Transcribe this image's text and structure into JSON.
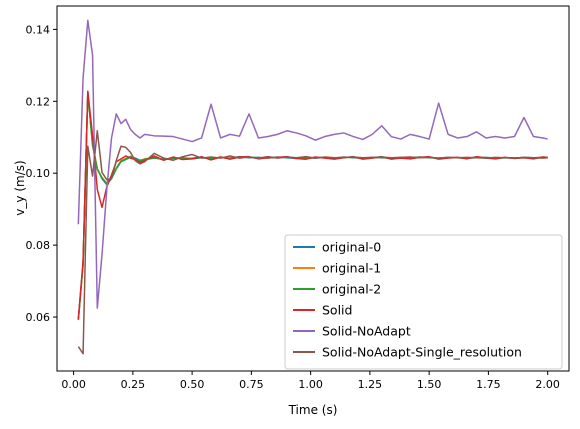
{
  "chart_data": {
    "type": "line",
    "xlabel": "Time (s)",
    "ylabel": "v_y (m/s)",
    "xlim": [
      -0.07,
      2.09
    ],
    "ylim": [
      0.045,
      0.1465
    ],
    "xticks": [
      0.0,
      0.25,
      0.5,
      0.75,
      1.0,
      1.25,
      1.5,
      1.75,
      2.0
    ],
    "xtick_labels": [
      "0.00",
      "0.25",
      "0.50",
      "0.75",
      "1.00",
      "1.25",
      "1.50",
      "1.75",
      "2.00"
    ],
    "yticks": [
      0.06,
      0.08,
      0.1,
      0.12,
      0.14
    ],
    "ytick_labels": [
      "0.06",
      "0.08",
      "0.10",
      "0.12",
      "0.14"
    ],
    "grid": false,
    "legend_position": "lower-right",
    "x": [
      0.02,
      0.04,
      0.06,
      0.08,
      0.1,
      0.12,
      0.14,
      0.16,
      0.18,
      0.2,
      0.22,
      0.24,
      0.26,
      0.28,
      0.3,
      0.34,
      0.38,
      0.42,
      0.46,
      0.5,
      0.54,
      0.58,
      0.62,
      0.66,
      0.7,
      0.74,
      0.78,
      0.82,
      0.86,
      0.9,
      0.94,
      0.98,
      1.02,
      1.06,
      1.1,
      1.14,
      1.18,
      1.22,
      1.26,
      1.3,
      1.34,
      1.38,
      1.42,
      1.46,
      1.5,
      1.54,
      1.58,
      1.62,
      1.66,
      1.7,
      1.74,
      1.78,
      1.82,
      1.86,
      1.9,
      1.94,
      1.98,
      2.0
    ],
    "series": [
      {
        "name": "original-0",
        "color": "#1f77b4",
        "values": [
          0.0592,
          0.0748,
          0.1225,
          0.1078,
          0.1012,
          0.0985,
          0.0968,
          0.0985,
          0.1012,
          0.1032,
          0.1038,
          0.1045,
          0.1042,
          0.1036,
          0.1038,
          0.1042,
          0.1039,
          0.1041,
          0.1043,
          0.104,
          0.1043,
          0.1041,
          0.1044,
          0.1042,
          0.1046,
          0.1043,
          0.1044,
          0.1042,
          0.1045,
          0.1043,
          0.1041,
          0.1043,
          0.1042,
          0.1044,
          0.1042,
          0.1045,
          0.1043,
          0.1042,
          0.1044,
          0.1043,
          0.1042,
          0.1044,
          0.1043,
          0.1045,
          0.1043,
          0.1042,
          0.1044,
          0.1043,
          0.1042,
          0.1043,
          0.1044,
          0.1042,
          0.1043,
          0.1042,
          0.1044,
          0.1043,
          0.1044,
          0.1043
        ]
      },
      {
        "name": "original-1",
        "color": "#ff7f0e",
        "values": [
          0.0592,
          0.0746,
          0.1223,
          0.1082,
          0.1012,
          0.0988,
          0.0972,
          0.0988,
          0.1014,
          0.1035,
          0.1041,
          0.1047,
          0.1039,
          0.1033,
          0.104,
          0.1044,
          0.1037,
          0.1043,
          0.1041,
          0.1042,
          0.1045,
          0.1039,
          0.1045,
          0.104,
          0.1044,
          0.1045,
          0.1042,
          0.1044,
          0.1043,
          0.1045,
          0.1042,
          0.1041,
          0.1044,
          0.1043,
          0.104,
          0.1043,
          0.1045,
          0.1041,
          0.1043,
          0.1045,
          0.1041,
          0.1043,
          0.1042,
          0.1044,
          0.1045,
          0.1041,
          0.1043,
          0.1044,
          0.1041,
          0.1045,
          0.1043,
          0.1041,
          0.1044,
          0.1042,
          0.1043,
          0.1042,
          0.1045,
          0.1044
        ]
      },
      {
        "name": "original-2",
        "color": "#2ca02c",
        "values": [
          0.0592,
          0.0747,
          0.1224,
          0.108,
          0.1011,
          0.0987,
          0.097,
          0.0986,
          0.1013,
          0.1033,
          0.1039,
          0.1046,
          0.104,
          0.1034,
          0.1039,
          0.1043,
          0.1038,
          0.1042,
          0.1042,
          0.1041,
          0.1044,
          0.104,
          0.1044,
          0.1041,
          0.1045,
          0.1044,
          0.1043,
          0.1043,
          0.1044,
          0.1044,
          0.1042,
          0.1042,
          0.1043,
          0.1044,
          0.1041,
          0.1044,
          0.1044,
          0.1042,
          0.1043,
          0.1044,
          0.1042,
          0.1043,
          0.1043,
          0.1044,
          0.1044,
          0.1042,
          0.1043,
          0.1043,
          0.1042,
          0.1044,
          0.1043,
          0.1042,
          0.1043,
          0.1043,
          0.1043,
          0.1042,
          0.1044,
          0.1043
        ]
      },
      {
        "name": "Solid",
        "color": "#d62728",
        "values": [
          0.0595,
          0.0755,
          0.1228,
          0.1105,
          0.0955,
          0.0905,
          0.0962,
          0.0995,
          0.1032,
          0.104,
          0.1048,
          0.1042,
          0.1038,
          0.103,
          0.1035,
          0.1048,
          0.1036,
          0.1045,
          0.1038,
          0.104,
          0.1046,
          0.1037,
          0.1045,
          0.1039,
          0.1045,
          0.1046,
          0.104,
          0.1043,
          0.1044,
          0.1046,
          0.1041,
          0.1039,
          0.1045,
          0.1042,
          0.1039,
          0.1043,
          0.1046,
          0.1039,
          0.1042,
          0.1046,
          0.1039,
          0.1042,
          0.104,
          0.1044,
          0.1046,
          0.1039,
          0.1042,
          0.1044,
          0.104,
          0.1046,
          0.1042,
          0.104,
          0.1044,
          0.1041,
          0.1043,
          0.104,
          0.1045,
          0.1044
        ]
      },
      {
        "name": "Solid-NoAdapt",
        "color": "#9467bd",
        "values": [
          0.0858,
          0.1265,
          0.1425,
          0.1328,
          0.0625,
          0.0775,
          0.0955,
          0.1098,
          0.1165,
          0.1138,
          0.115,
          0.1122,
          0.1108,
          0.1098,
          0.1108,
          0.1104,
          0.1103,
          0.1102,
          0.1095,
          0.1088,
          0.1098,
          0.1192,
          0.1098,
          0.1108,
          0.1103,
          0.1165,
          0.1098,
          0.1102,
          0.1108,
          0.1118,
          0.1112,
          0.1104,
          0.1092,
          0.1102,
          0.1108,
          0.1112,
          0.1102,
          0.1094,
          0.1108,
          0.1132,
          0.1102,
          0.1095,
          0.1108,
          0.1102,
          0.1095,
          0.1195,
          0.1108,
          0.1098,
          0.1102,
          0.1115,
          0.1098,
          0.1102,
          0.1098,
          0.1102,
          0.1155,
          0.1102,
          0.1098,
          0.1095
        ]
      },
      {
        "name": "Solid-NoAdapt-Single_resolution",
        "color": "#8c564b",
        "values": [
          0.0518,
          0.0498,
          0.1075,
          0.0992,
          0.1118,
          0.1002,
          0.0982,
          0.0985,
          0.1035,
          0.1075,
          0.1072,
          0.1058,
          0.1035,
          0.1026,
          0.1032,
          0.1055,
          0.1042,
          0.1036,
          0.1046,
          0.1052,
          0.1042,
          0.1045,
          0.1042,
          0.1048,
          0.1042,
          0.1045,
          0.1042,
          0.1046,
          0.1042,
          0.1045,
          0.1043,
          0.1046,
          0.1042,
          0.1045,
          0.1043,
          0.1044,
          0.1045,
          0.1043,
          0.1044,
          0.1045,
          0.1043,
          0.1044,
          0.1045,
          0.1043,
          0.1044,
          0.1042,
          0.1044,
          0.1043,
          0.1044,
          0.1043,
          0.1042,
          0.1044,
          0.1043,
          0.1042,
          0.1044,
          0.1043,
          0.1042,
          0.1043
        ]
      }
    ]
  }
}
